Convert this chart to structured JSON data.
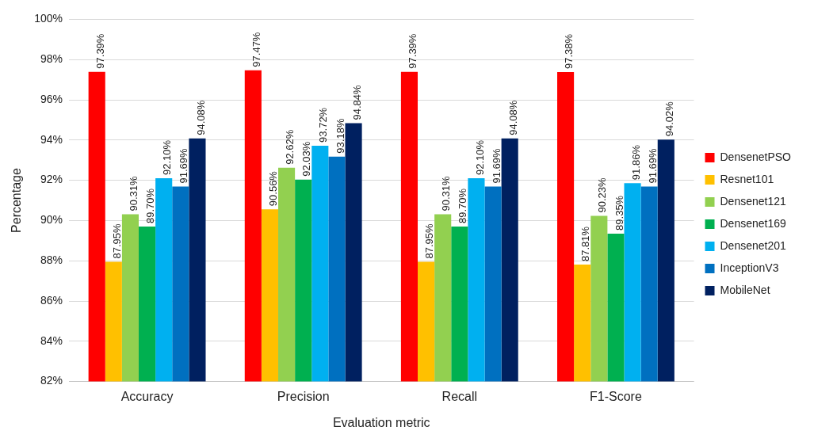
{
  "chart_data": {
    "type": "bar",
    "xlabel": "Evaluation metric",
    "ylabel": "Percentage",
    "categories": [
      "Accuracy",
      "Precision",
      "Recall",
      "F1-Score"
    ],
    "series": [
      {
        "name": "DensenetPSO",
        "color": "#ff0000",
        "values": [
          97.39,
          97.47,
          97.39,
          97.38
        ],
        "value_labels": [
          "97.39%",
          "97.47%",
          "97.39%",
          "97.38%"
        ]
      },
      {
        "name": "Resnet101",
        "color": "#ffc000",
        "values": [
          87.95,
          90.56,
          87.95,
          87.81
        ],
        "value_labels": [
          "87.95%",
          "90.56%",
          "87.95%",
          "87.81%"
        ]
      },
      {
        "name": "Densenet121",
        "color": "#92d050",
        "values": [
          90.31,
          92.62,
          90.31,
          90.23
        ],
        "value_labels": [
          "90.31%",
          "92.62%",
          "90.31%",
          "90.23%"
        ]
      },
      {
        "name": "Densenet169",
        "color": "#00b050",
        "values": [
          89.7,
          92.03,
          89.7,
          89.35
        ],
        "value_labels": [
          "89.70%",
          "92.03%",
          "89.70%",
          "89.35%"
        ]
      },
      {
        "name": "Densenet201",
        "color": "#00b0f0",
        "values": [
          92.1,
          93.72,
          92.1,
          91.86
        ],
        "value_labels": [
          "92.10%",
          "93.72%",
          "92.10%",
          "91.86%"
        ]
      },
      {
        "name": "InceptionV3",
        "color": "#0070c0",
        "values": [
          91.69,
          93.18,
          91.69,
          91.69
        ],
        "value_labels": [
          "91.69%",
          "93.18%",
          "91.69%",
          "91.69%"
        ]
      },
      {
        "name": "MobileNet",
        "color": "#002060",
        "values": [
          94.08,
          94.84,
          94.08,
          94.02
        ],
        "value_labels": [
          "94.08%",
          "94.84%",
          "94.08%",
          "94.02%"
        ]
      }
    ],
    "ylim": [
      82,
      100
    ],
    "yticks": [
      {
        "value": 82,
        "label": "82%"
      },
      {
        "value": 84,
        "label": "84%"
      },
      {
        "value": 86,
        "label": "86%"
      },
      {
        "value": 88,
        "label": "88%"
      },
      {
        "value": 90,
        "label": "90%"
      },
      {
        "value": 92,
        "label": "92%"
      },
      {
        "value": 94,
        "label": "94%"
      },
      {
        "value": 96,
        "label": "96%"
      },
      {
        "value": 98,
        "label": "98%"
      },
      {
        "value": 100,
        "label": "100%"
      }
    ],
    "grid": "y",
    "legend": "right"
  }
}
